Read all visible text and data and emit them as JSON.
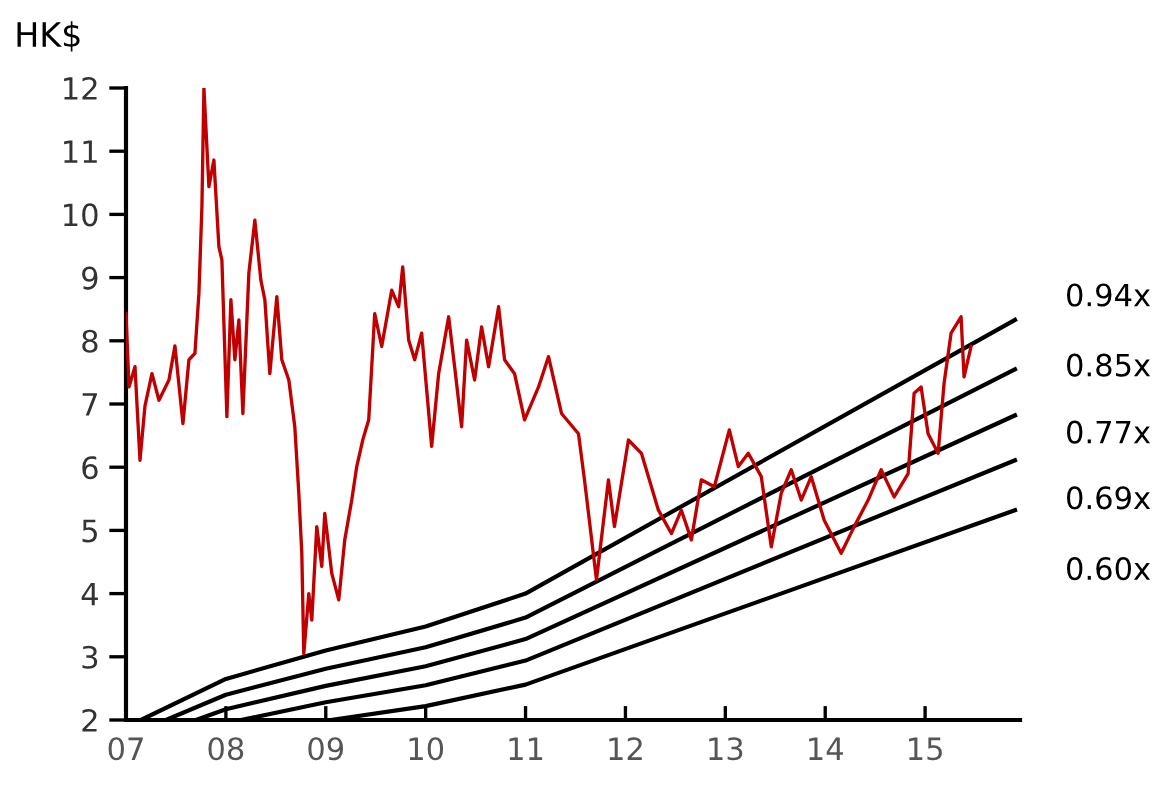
{
  "chart_data": {
    "type": "line",
    "ylabel": "HK$",
    "xlim": [
      2007,
      2015.95
    ],
    "ylim": [
      2,
      12
    ],
    "xticks": [
      {
        "value": 2007,
        "label": "07"
      },
      {
        "value": 2008,
        "label": "08"
      },
      {
        "value": 2009,
        "label": "09"
      },
      {
        "value": 2010,
        "label": "10"
      },
      {
        "value": 2011,
        "label": "11"
      },
      {
        "value": 2012,
        "label": "12"
      },
      {
        "value": 2013,
        "label": "13"
      },
      {
        "value": 2014,
        "label": "14"
      },
      {
        "value": 2015,
        "label": "15"
      }
    ],
    "yticks": [
      2,
      3,
      4,
      5,
      6,
      7,
      8,
      9,
      10,
      11,
      12
    ],
    "grid": false,
    "legend": false,
    "marker": "none",
    "line_style": "solid",
    "series": [
      {
        "color": "#c00000",
        "x": [
          2007.0,
          2007.03,
          2007.09,
          2007.14,
          2007.19,
          2007.26,
          2007.33,
          2007.43,
          2007.49,
          2007.57,
          2007.63,
          2007.69,
          2007.73,
          2007.76,
          2007.78,
          2007.83,
          2007.88,
          2007.93,
          2007.96,
          2008.01,
          2008.05,
          2008.09,
          2008.13,
          2008.17,
          2008.23,
          2008.29,
          2008.35,
          2008.39,
          2008.44,
          2008.51,
          2008.56,
          2008.63,
          2008.69,
          2008.73,
          2008.76,
          2008.78,
          2008.83,
          2008.86,
          2008.91,
          2008.96,
          2008.99,
          2009.06,
          2009.13,
          2009.19,
          2009.26,
          2009.31,
          2009.37,
          2009.43,
          2009.49,
          2009.56,
          2009.66,
          2009.73,
          2009.77,
          2009.83,
          2009.89,
          2009.96,
          2010.06,
          2010.13,
          2010.23,
          2010.29,
          2010.36,
          2010.41,
          2010.49,
          2010.56,
          2010.63,
          2010.73,
          2010.79,
          2010.89,
          2010.99,
          2011.13,
          2011.23,
          2011.36,
          2011.53,
          2011.59,
          2011.71,
          2011.83,
          2011.89,
          2012.03,
          2012.16,
          2012.33,
          2012.46,
          2012.56,
          2012.66,
          2012.76,
          2012.89,
          2013.04,
          2013.13,
          2013.23,
          2013.36,
          2013.46,
          2013.56,
          2013.66,
          2013.76,
          2013.86,
          2013.99,
          2014.16,
          2014.29,
          2014.43,
          2014.56,
          2014.69,
          2014.83,
          2014.89,
          2014.96,
          2015.03,
          2015.13,
          2015.19,
          2015.26,
          2015.36,
          2015.39,
          2015.46
        ],
        "values": [
          8.43,
          7.27,
          7.59,
          6.11,
          6.97,
          7.48,
          7.06,
          7.38,
          7.92,
          6.69,
          7.7,
          7.8,
          8.75,
          10.12,
          12.0,
          10.44,
          10.86,
          9.49,
          9.28,
          6.8,
          8.65,
          7.7,
          8.33,
          6.85,
          9.07,
          9.91,
          8.96,
          8.65,
          7.48,
          8.7,
          7.7,
          7.38,
          6.64,
          5.59,
          4.64,
          3.05,
          4.0,
          3.58,
          5.06,
          4.43,
          5.27,
          4.32,
          3.9,
          4.85,
          5.48,
          6.01,
          6.43,
          6.75,
          8.43,
          7.91,
          8.8,
          8.54,
          9.17,
          8.01,
          7.7,
          8.12,
          6.33,
          7.48,
          8.38,
          7.59,
          6.64,
          8.01,
          7.38,
          8.22,
          7.59,
          8.54,
          7.7,
          7.48,
          6.75,
          7.27,
          7.75,
          6.85,
          6.53,
          5.8,
          4.22,
          5.8,
          5.06,
          6.43,
          6.22,
          5.32,
          4.95,
          5.32,
          4.85,
          5.8,
          5.69,
          6.59,
          6.01,
          6.22,
          5.85,
          4.74,
          5.59,
          5.96,
          5.48,
          5.85,
          5.16,
          4.64,
          5.06,
          5.48,
          5.96,
          5.53,
          5.9,
          7.17,
          7.27,
          6.53,
          6.22,
          7.33,
          8.12,
          8.38,
          7.43,
          7.91
        ]
      },
      {
        "name": "0.94x",
        "color": "#000000",
        "x": [
          2007.15,
          2008,
          2009,
          2010,
          2011,
          2015.9
        ],
        "values": [
          2.0,
          2.65,
          3.1,
          3.48,
          4.0,
          8.33
        ]
      },
      {
        "name": "0.85x",
        "color": "#000000",
        "x": [
          2007.4,
          2008,
          2009,
          2010,
          2011,
          2015.9
        ],
        "values": [
          2.0,
          2.4,
          2.81,
          3.15,
          3.62,
          7.55
        ]
      },
      {
        "name": "0.77x",
        "color": "#000000",
        "x": [
          2007.7,
          2008,
          2009,
          2010,
          2011,
          2015.9
        ],
        "values": [
          2.0,
          2.17,
          2.54,
          2.85,
          3.28,
          6.82
        ]
      },
      {
        "name": "0.69x",
        "color": "#000000",
        "x": [
          2008.15,
          2009,
          2010,
          2011,
          2015.9
        ],
        "values": [
          2.0,
          2.28,
          2.55,
          2.94,
          6.11
        ]
      },
      {
        "name": "0.60x",
        "color": "#000000",
        "x": [
          2009.05,
          2010,
          2011,
          2015.9
        ],
        "values": [
          2.0,
          2.22,
          2.56,
          5.32
        ]
      }
    ]
  }
}
